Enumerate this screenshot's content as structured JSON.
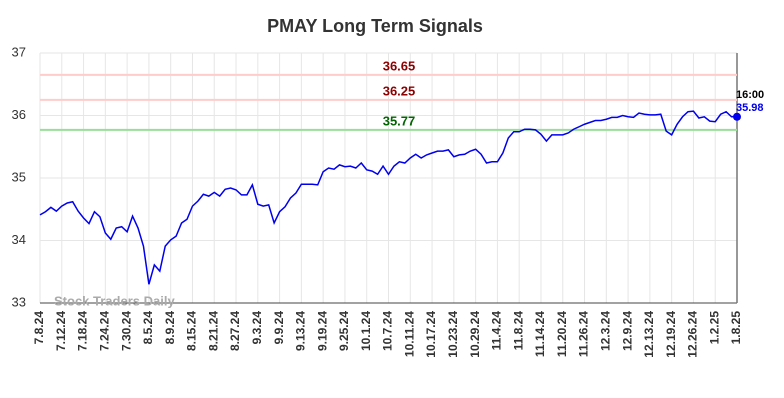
{
  "chart_data": {
    "type": "line",
    "title": "PMAY Long Term Signals",
    "categories": [
      "7.8.24",
      null,
      null,
      null,
      "7.12.24",
      null,
      null,
      null,
      "7.18.24",
      null,
      null,
      null,
      "7.24.24",
      null,
      null,
      null,
      "7.30.24",
      null,
      null,
      null,
      "8.5.24",
      null,
      null,
      null,
      "8.9.24",
      null,
      null,
      null,
      "8.15.24",
      null,
      null,
      null,
      "8.21.24",
      null,
      null,
      null,
      "8.27.24",
      null,
      null,
      null,
      "9.3.24",
      null,
      null,
      null,
      "9.9.24",
      null,
      null,
      null,
      "9.13.24",
      null,
      null,
      null,
      "9.19.24",
      null,
      null,
      null,
      "9.25.24",
      null,
      null,
      null,
      "10.1.24",
      null,
      null,
      null,
      "10.7.24",
      null,
      null,
      null,
      "10.11.24",
      null,
      null,
      null,
      "10.17.24",
      null,
      null,
      null,
      "10.23.24",
      null,
      null,
      null,
      "10.29.24",
      null,
      null,
      null,
      "11.4.24",
      null,
      null,
      null,
      "11.8.24",
      null,
      null,
      null,
      "11.14.24",
      null,
      null,
      null,
      "11.20.24",
      null,
      null,
      null,
      "11.26.24",
      null,
      null,
      null,
      "12.3.24",
      null,
      null,
      null,
      "12.9.24",
      null,
      null,
      null,
      "12.13.24",
      null,
      null,
      null,
      "12.19.24",
      null,
      null,
      null,
      "12.26.24",
      null,
      null,
      null,
      "1.2.25",
      null,
      null,
      null,
      "1.8.25"
    ],
    "series": [
      {
        "name": "PMAY",
        "color": "#0000ee",
        "values": [
          34.41,
          34.46,
          34.53,
          34.47,
          34.55,
          34.6,
          34.62,
          34.47,
          34.36,
          34.27,
          34.46,
          34.38,
          34.12,
          34.02,
          34.2,
          34.22,
          34.14,
          34.39,
          34.2,
          33.91,
          33.3,
          33.61,
          33.51,
          33.91,
          34.01,
          34.07,
          34.28,
          34.34,
          34.55,
          34.63,
          34.74,
          34.71,
          34.77,
          34.71,
          34.82,
          34.84,
          34.81,
          34.73,
          34.73,
          34.89,
          34.58,
          34.55,
          34.57,
          34.28,
          34.46,
          34.54,
          34.68,
          34.76,
          34.9,
          34.9,
          34.9,
          34.89,
          35.1,
          35.16,
          35.14,
          35.21,
          35.18,
          35.19,
          35.16,
          35.24,
          35.13,
          35.11,
          35.06,
          35.19,
          35.06,
          35.19,
          35.26,
          35.24,
          35.32,
          35.38,
          35.32,
          35.37,
          35.4,
          35.43,
          35.43,
          35.45,
          35.34,
          35.37,
          35.38,
          35.43,
          35.46,
          35.38,
          35.24,
          35.26,
          35.26,
          35.4,
          35.64,
          35.74,
          35.74,
          35.78,
          35.78,
          35.77,
          35.7,
          35.59,
          35.69,
          35.69,
          35.69,
          35.72,
          35.78,
          35.82,
          35.86,
          35.89,
          35.92,
          35.92,
          35.94,
          35.97,
          35.97,
          36.0,
          35.98,
          35.97,
          36.04,
          36.02,
          36.01,
          36.01,
          36.02,
          35.75,
          35.69,
          35.86,
          35.98,
          36.06,
          36.07,
          35.96,
          35.98,
          35.91,
          35.9,
          36.02,
          36.06,
          35.98,
          35.98
        ]
      }
    ],
    "reference_lines": [
      {
        "value": 36.65,
        "color": "#ffcccc",
        "label_color": "#8b0000"
      },
      {
        "value": 36.25,
        "color": "#ffcccc",
        "label_color": "#8b0000"
      },
      {
        "value": 35.77,
        "color": "#99dd99",
        "label_color": "#006400"
      }
    ],
    "last_time": "16:00",
    "watermark": "Stock Traders Daily",
    "ylim": [
      33,
      37
    ],
    "yticks": [
      33,
      34,
      35,
      36,
      37
    ],
    "grid": true
  }
}
